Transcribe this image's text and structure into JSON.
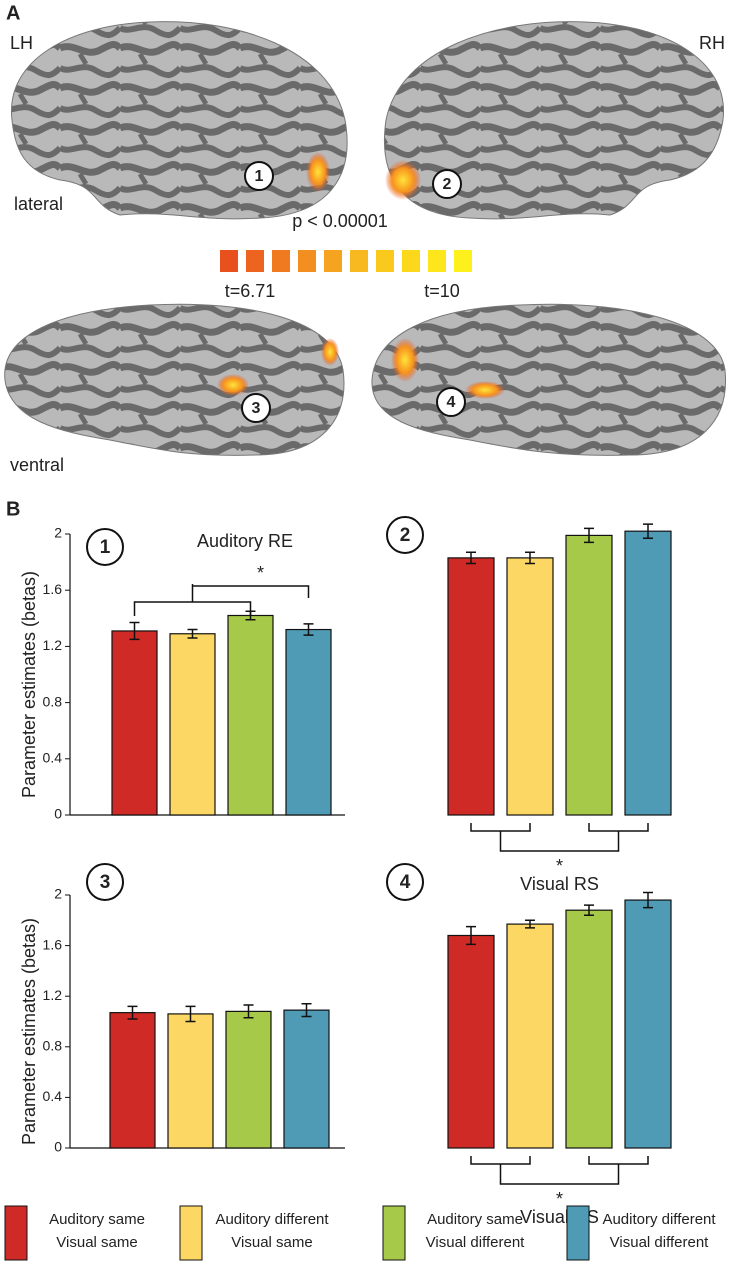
{
  "brain_panel": {
    "label": "A",
    "left_hemisphere": "LH",
    "right_hemisphere": "RH",
    "lateral_view": "lateral",
    "ventral_view": "ventral",
    "threshold": "p < 0.00001",
    "colorbar_min": "t=6.71",
    "colorbar_max": "t=10"
  },
  "panel_b_label": "B",
  "legend": [
    {
      "lines": [
        "Auditory same",
        "Visual same"
      ],
      "color": "#cf2a26"
    },
    {
      "lines": [
        "Auditory different",
        "Visual same"
      ],
      "color": "#fdd764"
    },
    {
      "lines": [
        "Auditory same",
        "Visual different"
      ],
      "color": "#a6c94a"
    },
    {
      "lines": [
        "Auditory different",
        "Visual different"
      ],
      "color": "#4f9bb5"
    }
  ],
  "chart_data": [
    {
      "type": "bar",
      "label": "1",
      "title": "Auditory RE",
      "ylabel": "Parameter estimates (betas)",
      "annotation": "*",
      "values": [
        1.31,
        1.29,
        1.42,
        1.32
      ],
      "errors": [
        0.06,
        0.03,
        0.03,
        0.04
      ],
      "ylim": [
        0,
        2
      ],
      "yticks": [
        0,
        0.4,
        0.8,
        1.2,
        1.6,
        2
      ]
    },
    {
      "type": "bar",
      "label": "2",
      "annotation": "*",
      "note": "Visual RS",
      "values": [
        1.83,
        1.83,
        1.99,
        2.02
      ],
      "errors": [
        0.04,
        0.04,
        0.05,
        0.05
      ],
      "ylim": [
        0,
        2
      ]
    },
    {
      "type": "bar",
      "label": "3",
      "ylabel": "Parameter estimates (betas)",
      "values": [
        1.07,
        1.06,
        1.08,
        1.09
      ],
      "errors": [
        0.05,
        0.06,
        0.05,
        0.05
      ],
      "ylim": [
        0,
        2
      ],
      "yticks": [
        0,
        0.4,
        0.8,
        1.2,
        1.6,
        2
      ]
    },
    {
      "type": "bar",
      "label": "4",
      "annotation": "*",
      "note": "Visual RS",
      "values": [
        1.68,
        1.77,
        1.88,
        1.96
      ],
      "errors": [
        0.07,
        0.03,
        0.04,
        0.06
      ],
      "ylim": [
        0,
        2
      ]
    }
  ]
}
